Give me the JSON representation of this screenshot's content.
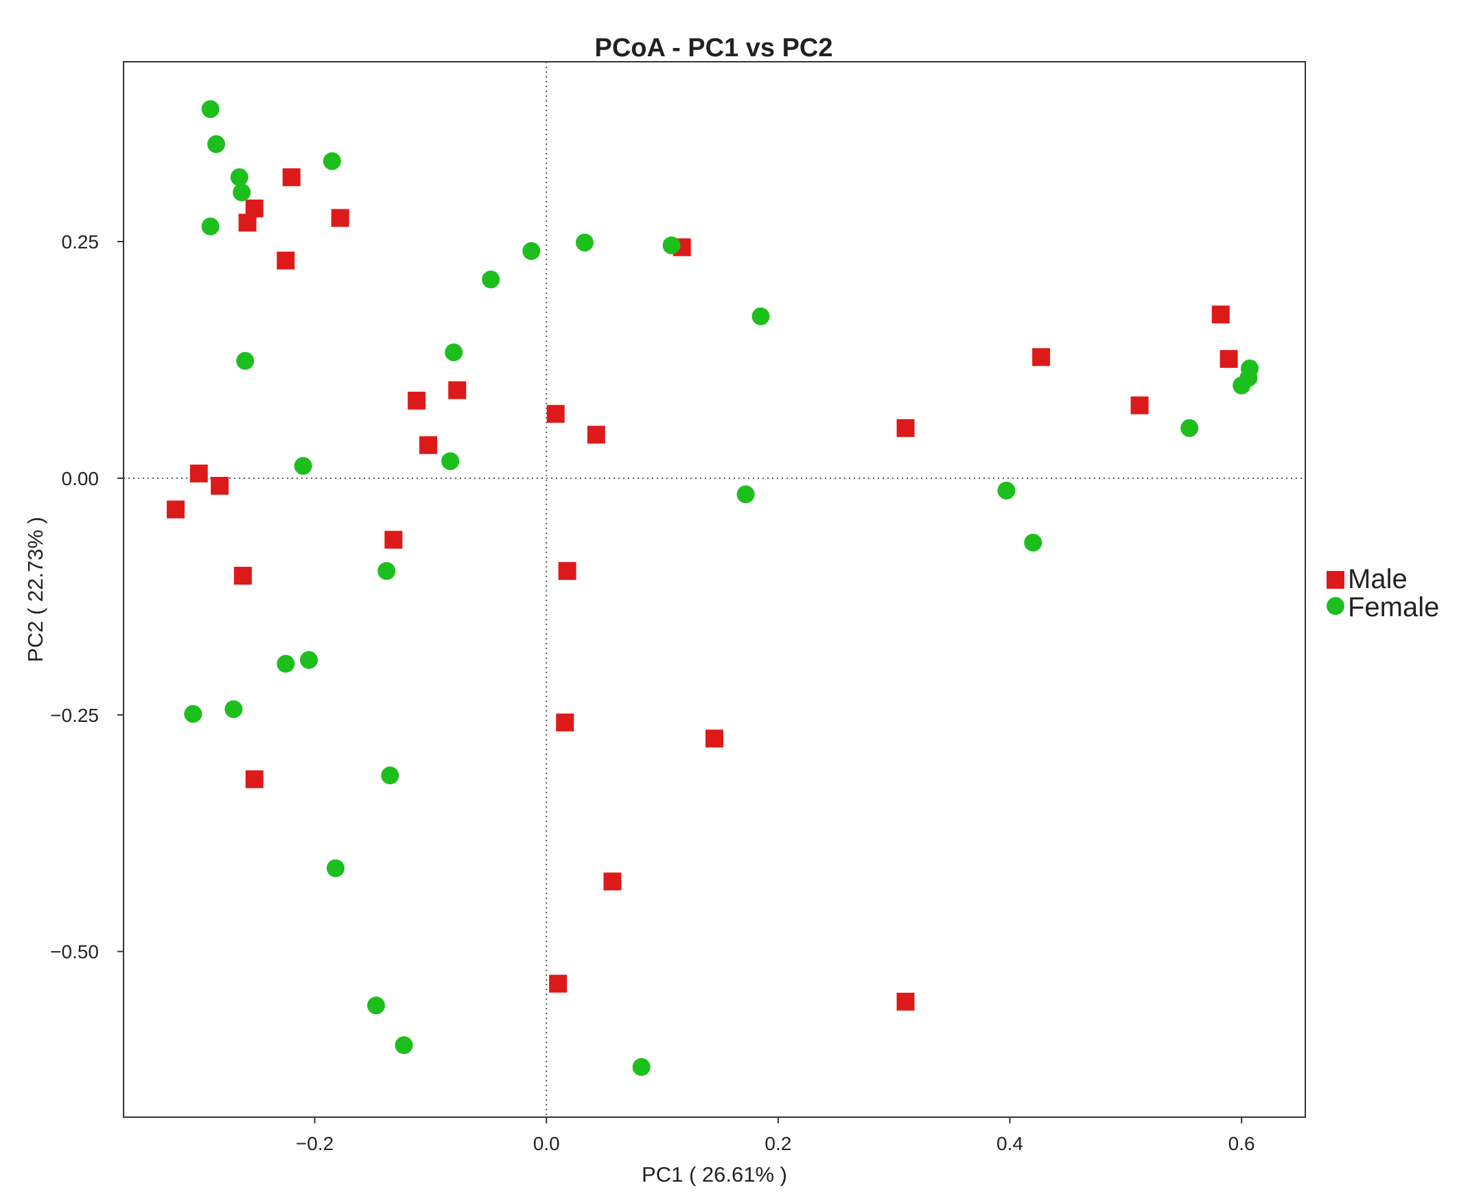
{
  "chart_data": {
    "type": "scatter",
    "title": "PCoA - PC1 vs PC2",
    "xlabel": "PC1 ( 26.61% )",
    "ylabel": "PC2 ( 22.73% )",
    "xlim": [
      -0.365,
      0.655
    ],
    "ylim": [
      -0.675,
      0.44
    ],
    "x_ticks": [
      -0.2,
      0.0,
      0.2,
      0.4,
      0.6
    ],
    "x_tick_labels": [
      "−0.2",
      "0.0",
      "0.2",
      "0.4",
      "0.6"
    ],
    "y_ticks": [
      0.25,
      0.0,
      -0.25,
      -0.5
    ],
    "y_tick_labels": [
      "0.25",
      "0.00",
      "−0.25",
      "−0.50"
    ],
    "reference_lines": {
      "x": 0,
      "y": 0,
      "style": "dotted"
    },
    "grid": false,
    "legend_position": "right",
    "series": [
      {
        "name": "Male",
        "marker": "square",
        "color": "#dd1a1a",
        "points": [
          [
            -0.32,
            -0.033
          ],
          [
            -0.3,
            0.005
          ],
          [
            -0.282,
            -0.008
          ],
          [
            -0.258,
            0.27
          ],
          [
            -0.252,
            0.285
          ],
          [
            -0.225,
            0.23
          ],
          [
            -0.22,
            0.318
          ],
          [
            -0.178,
            0.275
          ],
          [
            -0.262,
            -0.103
          ],
          [
            -0.252,
            -0.318
          ],
          [
            -0.132,
            -0.065
          ],
          [
            -0.112,
            0.082
          ],
          [
            -0.102,
            0.035
          ],
          [
            -0.077,
            0.093
          ],
          [
            0.008,
            0.068
          ],
          [
            0.043,
            0.046
          ],
          [
            0.018,
            -0.098
          ],
          [
            0.016,
            -0.258
          ],
          [
            0.057,
            -0.426
          ],
          [
            0.01,
            -0.534
          ],
          [
            0.117,
            0.244
          ],
          [
            0.145,
            -0.275
          ],
          [
            0.31,
            0.053
          ],
          [
            0.31,
            -0.553
          ],
          [
            0.427,
            0.128
          ],
          [
            0.512,
            0.077
          ],
          [
            0.582,
            0.173
          ],
          [
            0.589,
            0.126
          ]
        ]
      },
      {
        "name": "Female",
        "marker": "circle",
        "color": "#1dbf1d",
        "points": [
          [
            -0.29,
            0.39
          ],
          [
            -0.285,
            0.353
          ],
          [
            -0.265,
            0.318
          ],
          [
            -0.263,
            0.302
          ],
          [
            -0.29,
            0.266
          ],
          [
            -0.26,
            0.124
          ],
          [
            -0.185,
            0.335
          ],
          [
            -0.21,
            0.013
          ],
          [
            -0.305,
            -0.249
          ],
          [
            -0.27,
            -0.244
          ],
          [
            -0.225,
            -0.196
          ],
          [
            -0.205,
            -0.192
          ],
          [
            -0.138,
            -0.098
          ],
          [
            -0.135,
            -0.314
          ],
          [
            -0.182,
            -0.412
          ],
          [
            -0.147,
            -0.557
          ],
          [
            -0.123,
            -0.599
          ],
          [
            -0.08,
            0.133
          ],
          [
            -0.083,
            0.018
          ],
          [
            -0.048,
            0.21
          ],
          [
            -0.013,
            0.24
          ],
          [
            0.033,
            0.249
          ],
          [
            0.108,
            0.246
          ],
          [
            0.185,
            0.171
          ],
          [
            0.172,
            -0.017
          ],
          [
            0.082,
            -0.622
          ],
          [
            0.397,
            -0.013
          ],
          [
            0.42,
            -0.068
          ],
          [
            0.555,
            0.053
          ],
          [
            0.6,
            0.098
          ],
          [
            0.606,
            0.106
          ],
          [
            0.607,
            0.116
          ]
        ]
      }
    ]
  }
}
